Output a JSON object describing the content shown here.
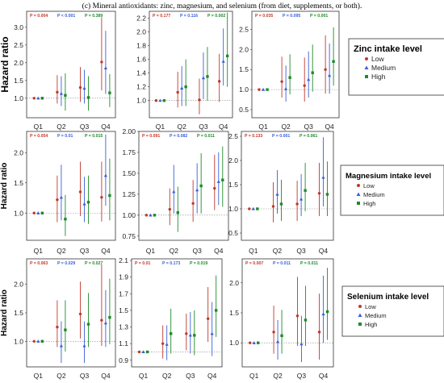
{
  "caption": "(c) Mineral antioxidants: zinc, magnesium, and selenium (from diet, supplements, or both).",
  "colors": {
    "low": "#c0392b",
    "medium": "#3a5fd9",
    "high": "#1f8a2a",
    "frame": "#333333",
    "refline": "#888888"
  },
  "legend_levels": [
    "Low",
    "Medium",
    "High"
  ],
  "chart_data": [
    {
      "type": "scatter",
      "row": "zinc",
      "ylabel": "Hazard ratio",
      "legend_title": "Zinc intake level",
      "categories": [
        "Q1",
        "Q2",
        "Q3",
        "Q4"
      ],
      "panels": [
        {
          "ylim": [
            0.45,
            3.45
          ],
          "yticks": [
            "1.0",
            "1.5",
            "2.0",
            "2.5",
            "3.0"
          ],
          "ytick_values": [
            1.0,
            1.5,
            2.0,
            2.5,
            3.0
          ],
          "p_values": [
            "P = 0.004",
            "P < 0.001",
            "P = 0.389"
          ],
          "series": [
            {
              "name": "Low",
              "values": [
                1.0,
                1.17,
                1.3,
                2.02
              ],
              "lower": [
                1.0,
                0.85,
                0.9,
                1.22
              ],
              "upper": [
                1.0,
                1.65,
                1.88,
                3.28
              ]
            },
            {
              "name": "Medium",
              "values": [
                1.0,
                1.13,
                1.28,
                1.85
              ],
              "lower": [
                1.0,
                0.78,
                0.85,
                1.12
              ],
              "upper": [
                1.0,
                1.62,
                1.8,
                2.9
              ]
            },
            {
              "name": "High",
              "values": [
                1.0,
                1.08,
                1.02,
                1.15
              ],
              "lower": [
                1.0,
                0.65,
                0.65,
                0.75
              ],
              "upper": [
                1.0,
                1.7,
                1.62,
                1.68
              ]
            }
          ]
        },
        {
          "ylim": [
            0.75,
            2.3
          ],
          "yticks": [
            "1.0",
            "1.2",
            "1.4",
            "1.6",
            "1.8",
            "2.0",
            "2.2"
          ],
          "ytick_values": [
            1.0,
            1.2,
            1.4,
            1.6,
            1.8,
            2.0,
            2.2
          ],
          "p_values": [
            "P = 0.177",
            "P = 0.116",
            "P = 0.002"
          ],
          "series": [
            {
              "name": "Low",
              "values": [
                1.0,
                1.12,
                1.01,
                1.28
              ],
              "lower": [
                1.0,
                0.9,
                0.8,
                0.98
              ],
              "upper": [
                1.0,
                1.42,
                1.32,
                1.68
              ]
            },
            {
              "name": "Medium",
              "values": [
                1.0,
                1.18,
                1.33,
                1.57
              ],
              "lower": [
                1.0,
                0.92,
                1.02,
                1.22
              ],
              "upper": [
                1.0,
                1.5,
                1.7,
                2.05
              ]
            },
            {
              "name": "High",
              "values": [
                1.0,
                1.2,
                1.35,
                1.65
              ],
              "lower": [
                1.0,
                0.92,
                1.0,
                1.2
              ],
              "upper": [
                1.0,
                1.6,
                1.78,
                2.28
              ]
            }
          ]
        },
        {
          "ylim": [
            0.3,
            2.95
          ],
          "yticks": [
            "0.5",
            "1.0",
            "1.5",
            "2.0",
            "2.5"
          ],
          "ytick_values": [
            0.5,
            1.0,
            1.5,
            2.0,
            2.5
          ],
          "p_values": [
            "P = 0.035",
            "P = 0.095",
            "P = 0.001"
          ],
          "series": [
            {
              "name": "Low",
              "values": [
                1.0,
                1.2,
                1.1,
                1.5
              ],
              "lower": [
                1.0,
                0.8,
                0.7,
                0.9
              ],
              "upper": [
                1.0,
                1.82,
                1.8,
                2.35
              ]
            },
            {
              "name": "Medium",
              "values": [
                1.0,
                1.02,
                1.25,
                1.35
              ],
              "lower": [
                1.0,
                0.7,
                0.8,
                0.9
              ],
              "upper": [
                1.0,
                1.6,
                1.95,
                2.15
              ]
            },
            {
              "name": "High",
              "values": [
                1.0,
                1.3,
                1.42,
                1.7
              ],
              "lower": [
                1.0,
                0.88,
                0.95,
                1.1
              ],
              "upper": [
                1.0,
                1.88,
                2.12,
                2.55
              ]
            }
          ]
        }
      ]
    },
    {
      "type": "scatter",
      "row": "magnesium",
      "ylabel": "Hazard ratio",
      "legend_title": "Magnesium intake level",
      "categories": [
        "Q1",
        "Q2",
        "Q3",
        "Q4"
      ],
      "panels": [
        {
          "ylim": [
            0.55,
            2.35
          ],
          "yticks": [
            "1.0",
            "1.5",
            "2.0"
          ],
          "ytick_values": [
            1.0,
            1.5,
            2.0
          ],
          "p_values": [
            "P = 0.054",
            "P = 0.01",
            "P = 0.015"
          ],
          "series": [
            {
              "name": "Low",
              "values": [
                1.0,
                1.22,
                1.35,
                1.26
              ],
              "lower": [
                1.0,
                0.85,
                0.95,
                0.86
              ],
              "upper": [
                1.0,
                1.62,
                1.85,
                1.85
              ]
            },
            {
              "name": "Medium",
              "values": [
                1.0,
                1.26,
                1.15,
                1.62
              ],
              "lower": [
                1.0,
                0.88,
                0.85,
                1.12
              ],
              "upper": [
                1.0,
                1.8,
                1.6,
                2.3
              ]
            },
            {
              "name": "High",
              "values": [
                1.0,
                0.9,
                1.18,
                1.29
              ],
              "lower": [
                1.0,
                0.62,
                0.82,
                0.88
              ],
              "upper": [
                1.0,
                1.3,
                1.62,
                1.9
              ]
            }
          ]
        },
        {
          "ylim": [
            0.7,
            2.0
          ],
          "yticks": [
            "0.75",
            "1.00",
            "1.25",
            "1.50",
            "1.75",
            "2.00"
          ],
          "ytick_values": [
            0.75,
            1.0,
            1.25,
            1.5,
            1.75,
            2.0
          ],
          "p_values": [
            "P = 0.091",
            "P = 0.082",
            "P = 0.011"
          ],
          "series": [
            {
              "name": "Low",
              "values": [
                1.0,
                1.07,
                1.14,
                1.32
              ],
              "lower": [
                1.0,
                0.88,
                0.92,
                1.06
              ],
              "upper": [
                1.0,
                1.32,
                1.42,
                1.72
              ]
            },
            {
              "name": "Medium",
              "values": [
                1.0,
                1.28,
                1.3,
                1.4
              ],
              "lower": [
                1.0,
                1.02,
                1.02,
                1.12
              ],
              "upper": [
                1.0,
                1.6,
                1.62,
                1.75
              ]
            },
            {
              "name": "High",
              "values": [
                1.0,
                1.03,
                1.35,
                1.42
              ],
              "lower": [
                1.0,
                0.8,
                1.02,
                1.1
              ],
              "upper": [
                1.0,
                1.34,
                1.74,
                1.82
              ]
            }
          ]
        },
        {
          "ylim": [
            0.35,
            2.6
          ],
          "yticks": [
            "0.5",
            "1.0",
            "1.5",
            "2.0",
            "2.5"
          ],
          "ytick_values": [
            0.5,
            1.0,
            1.5,
            2.0,
            2.5
          ],
          "p_values": [
            "P = 0.133",
            "P = 0.001",
            "P = 0.061"
          ],
          "series": [
            {
              "name": "Low",
              "values": [
                1.0,
                1.05,
                1.1,
                1.32
              ],
              "lower": [
                1.0,
                0.72,
                0.75,
                0.85
              ],
              "upper": [
                1.0,
                1.55,
                1.58,
                1.95
              ]
            },
            {
              "name": "Medium",
              "values": [
                1.0,
                1.3,
                1.2,
                1.65
              ],
              "lower": [
                1.0,
                0.9,
                0.85,
                1.05
              ],
              "upper": [
                1.0,
                1.8,
                1.72,
                2.48
              ]
            },
            {
              "name": "High",
              "values": [
                1.0,
                1.1,
                1.38,
                1.3
              ],
              "lower": [
                1.0,
                0.75,
                0.95,
                0.85
              ],
              "upper": [
                1.0,
                1.6,
                1.95,
                1.98
              ]
            }
          ]
        }
      ]
    },
    {
      "type": "scatter",
      "row": "selenium",
      "ylabel": "Hazard ratio",
      "legend_title": "Selenium intake level",
      "categories": [
        "Q1",
        "Q2",
        "Q3",
        "Q4"
      ],
      "panels": [
        {
          "ylim": [
            0.55,
            2.45
          ],
          "yticks": [
            "1.0",
            "1.5",
            "2.0"
          ],
          "ytick_values": [
            1.0,
            1.5,
            2.0
          ],
          "p_values": [
            "P = 0.063",
            "P = 0.029",
            "P = 0.027"
          ],
          "series": [
            {
              "name": "Low",
              "values": [
                1.0,
                1.25,
                1.48,
                1.37
              ],
              "lower": [
                1.0,
                0.9,
                1.05,
                0.92
              ],
              "upper": [
                1.0,
                1.72,
                2.05,
                2.35
              ]
            },
            {
              "name": "Medium",
              "values": [
                1.0,
                0.92,
                0.92,
                1.32
              ],
              "lower": [
                1.0,
                0.62,
                0.62,
                0.9
              ],
              "upper": [
                1.0,
                1.35,
                1.35,
                1.9
              ]
            },
            {
              "name": "High",
              "values": [
                1.0,
                1.2,
                1.3,
                1.42
              ],
              "lower": [
                1.0,
                0.82,
                0.9,
                0.95
              ],
              "upper": [
                1.0,
                1.72,
                1.85,
                2.1
              ]
            }
          ]
        },
        {
          "ylim": [
            0.82,
            2.12
          ],
          "yticks": [
            "0.9",
            "1.1",
            "1.3",
            "1.5",
            "1.7",
            "1.9",
            "2.1"
          ],
          "ytick_values": [
            0.9,
            1.1,
            1.3,
            1.5,
            1.7,
            1.9,
            2.1
          ],
          "p_values": [
            "P = 0.01",
            "P = 0.173",
            "P = 0.019"
          ],
          "series": [
            {
              "name": "Low",
              "values": [
                1.0,
                1.1,
                1.22,
                1.4
              ],
              "lower": [
                1.0,
                0.92,
                1.02,
                1.12
              ],
              "upper": [
                1.0,
                1.32,
                1.46,
                1.78
              ]
            },
            {
              "name": "Medium",
              "values": [
                1.0,
                1.09,
                1.2,
                1.22
              ],
              "lower": [
                1.0,
                0.9,
                0.98,
                0.95
              ],
              "upper": [
                1.0,
                1.32,
                1.48,
                1.6
              ]
            },
            {
              "name": "High",
              "values": [
                1.0,
                1.22,
                1.2,
                1.5
              ],
              "lower": [
                1.0,
                0.98,
                0.96,
                1.18
              ],
              "upper": [
                1.0,
                1.52,
                1.5,
                1.92
              ]
            }
          ]
        },
        {
          "ylim": [
            0.6,
            2.4
          ],
          "yticks": [
            "1.0",
            "1.5",
            "2.0"
          ],
          "ytick_values": [
            1.0,
            1.5,
            2.0
          ],
          "p_values": [
            "P = 0.007",
            "P = 0.011",
            "P = 0.011"
          ],
          "series": [
            {
              "name": "Low",
              "values": [
                1.0,
                1.18,
                1.45,
                1.18
              ],
              "lower": [
                1.0,
                0.82,
                0.95,
                0.72
              ],
              "upper": [
                1.0,
                1.62,
                2.1,
                1.82
              ]
            },
            {
              "name": "Medium",
              "values": [
                1.0,
                1.02,
                0.98,
                1.48
              ],
              "lower": [
                1.0,
                0.72,
                0.68,
                1.0
              ],
              "upper": [
                1.0,
                1.38,
                1.45,
                2.12
              ]
            },
            {
              "name": "High",
              "values": [
                1.0,
                1.12,
                1.38,
                1.52
              ],
              "lower": [
                1.0,
                0.82,
                0.95,
                1.05
              ],
              "upper": [
                1.0,
                1.55,
                1.95,
                2.25
              ]
            }
          ]
        }
      ]
    }
  ]
}
